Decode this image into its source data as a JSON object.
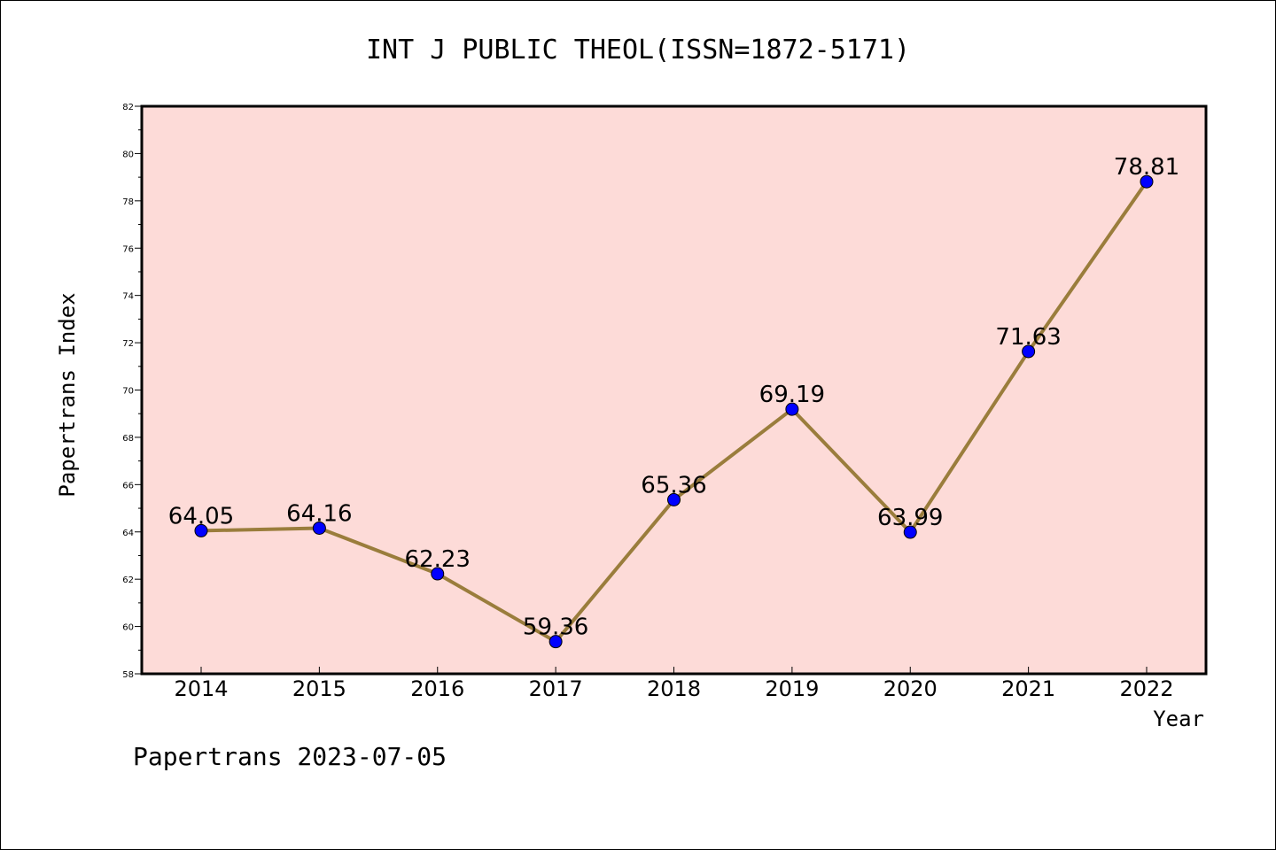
{
  "chart_data": {
    "type": "line",
    "title": "INT J PUBLIC THEOL(ISSN=1872-5171)",
    "xlabel": "Year",
    "ylabel": "Papertrans Index",
    "categories": [
      "2014",
      "2015",
      "2016",
      "2017",
      "2018",
      "2019",
      "2020",
      "2021",
      "2022"
    ],
    "values": [
      64.05,
      64.16,
      62.23,
      59.36,
      65.36,
      69.19,
      63.99,
      71.63,
      78.81
    ],
    "data_labels": [
      "64.05",
      "64.16",
      "62.23",
      "59.36",
      "65.36",
      "69.19",
      "63.99",
      "71.63",
      "78.81"
    ],
    "ylim": [
      58,
      82
    ],
    "yticks": [
      58,
      60,
      62,
      64,
      66,
      68,
      70,
      72,
      74,
      76,
      78,
      80,
      82
    ],
    "ytick_labels": [
      "58",
      "60",
      "62",
      "64",
      "66",
      "68",
      "70",
      "72",
      "74",
      "76",
      "78",
      "80",
      "82"
    ],
    "grid": false,
    "plot_background": "#fddbd8",
    "line_color": "#9a7d3c",
    "marker_color": "#0000ff"
  },
  "footer": {
    "watermark": "Papertrans 2023-07-05"
  }
}
